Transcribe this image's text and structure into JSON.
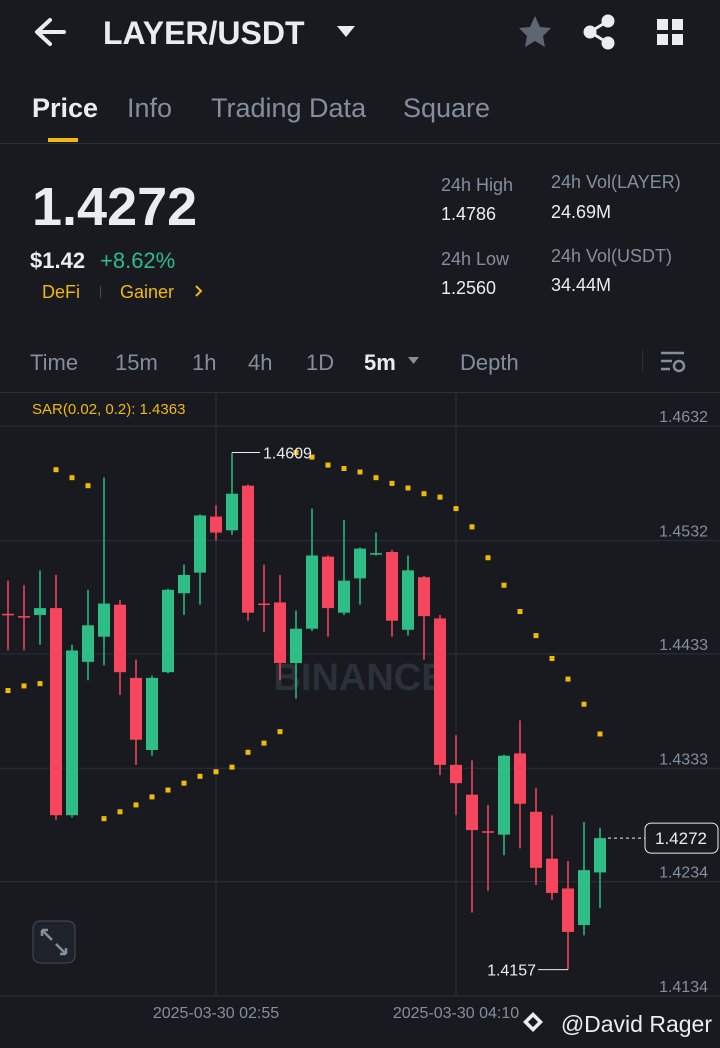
{
  "header": {
    "title": "LAYER/USDT"
  },
  "tabs": [
    "Price",
    "Info",
    "Trading Data",
    "Square"
  ],
  "ticker": {
    "last": "1.4272",
    "usd": "$1.42",
    "change": "+8.62%",
    "tags": [
      "DeFi",
      "Gainer"
    ],
    "stats": [
      {
        "label": "24h High",
        "value": "1.4786"
      },
      {
        "label": "24h Low",
        "value": "1.2560"
      },
      {
        "label": "24h Vol(LAYER)",
        "value": "24.69M"
      },
      {
        "label": "24h Vol(USDT)",
        "value": "34.44M"
      }
    ]
  },
  "intervals": [
    "Time",
    "15m",
    "1h",
    "4h",
    "1D",
    "5m",
    "Depth"
  ],
  "chart_data": {
    "type": "candlestick",
    "indicator": "SAR(0.02, 0.2): 1.4363",
    "watermark": "BINANCE",
    "up_color": "#2ebd85",
    "down_color": "#f6465d",
    "sar_color": "#f0b90b",
    "ylim": [
      1.4134,
      1.4661
    ],
    "yticks": [
      1.4632,
      1.4532,
      1.4433,
      1.4333,
      1.4234,
      1.4134
    ],
    "max_label": "1.4609",
    "min_label": "1.4157",
    "last_label": "1.4272",
    "categories": [
      null,
      null,
      null,
      null,
      null,
      null,
      null,
      null,
      null,
      null,
      null,
      null,
      null,
      "2025-03-30 02:55",
      null,
      null,
      null,
      null,
      null,
      null,
      null,
      null,
      null,
      null,
      null,
      null,
      null,
      null,
      "2025-03-30 04:10",
      null,
      null,
      null,
      null,
      null,
      null,
      null,
      null,
      null
    ],
    "candles": [
      {
        "open": 1.4468,
        "high": 1.4497,
        "low": 1.4436,
        "close": 1.4467
      },
      {
        "open": 1.4466,
        "high": 1.4493,
        "low": 1.4436,
        "close": 1.4465
      },
      {
        "open": 1.4467,
        "high": 1.4506,
        "low": 1.4441,
        "close": 1.4473
      },
      {
        "open": 1.4473,
        "high": 1.4502,
        "low": 1.4288,
        "close": 1.4292
      },
      {
        "open": 1.4292,
        "high": 1.4441,
        "low": 1.429,
        "close": 1.4436
      },
      {
        "open": 1.4426,
        "high": 1.4489,
        "low": 1.441,
        "close": 1.4458
      },
      {
        "open": 1.4448,
        "high": 1.4587,
        "low": 1.4423,
        "close": 1.4477
      },
      {
        "open": 1.4476,
        "high": 1.448,
        "low": 1.4397,
        "close": 1.4417
      },
      {
        "open": 1.4412,
        "high": 1.4428,
        "low": 1.4336,
        "close": 1.4358
      },
      {
        "open": 1.4349,
        "high": 1.4414,
        "low": 1.4344,
        "close": 1.4412
      },
      {
        "open": 1.4417,
        "high": 1.449,
        "low": 1.4416,
        "close": 1.4489
      },
      {
        "open": 1.4486,
        "high": 1.4511,
        "low": 1.4467,
        "close": 1.4502
      },
      {
        "open": 1.4504,
        "high": 1.4555,
        "low": 1.4476,
        "close": 1.4554
      },
      {
        "open": 1.4553,
        "high": 1.4563,
        "low": 1.4532,
        "close": 1.4539
      },
      {
        "open": 1.4541,
        "high": 1.4609,
        "low": 1.4537,
        "close": 1.4573
      },
      {
        "open": 1.458,
        "high": 1.4581,
        "low": 1.4462,
        "close": 1.4469
      },
      {
        "open": 1.4477,
        "high": 1.4511,
        "low": 1.4452,
        "close": 1.4476
      },
      {
        "open": 1.4478,
        "high": 1.4502,
        "low": 1.441,
        "close": 1.4425
      },
      {
        "open": 1.4425,
        "high": 1.4471,
        "low": 1.4394,
        "close": 1.4455
      },
      {
        "open": 1.4455,
        "high": 1.456,
        "low": 1.4453,
        "close": 1.4519
      },
      {
        "open": 1.4518,
        "high": 1.4519,
        "low": 1.4448,
        "close": 1.4473
      },
      {
        "open": 1.4469,
        "high": 1.455,
        "low": 1.4467,
        "close": 1.4497
      },
      {
        "open": 1.4499,
        "high": 1.4526,
        "low": 1.4476,
        "close": 1.4525
      },
      {
        "open": 1.452,
        "high": 1.4539,
        "low": 1.4519,
        "close": 1.4521
      },
      {
        "open": 1.4522,
        "high": 1.4524,
        "low": 1.4448,
        "close": 1.4462
      },
      {
        "open": 1.4454,
        "high": 1.4519,
        "low": 1.4449,
        "close": 1.4506
      },
      {
        "open": 1.45,
        "high": 1.4501,
        "low": 1.4428,
        "close": 1.4466
      },
      {
        "open": 1.4464,
        "high": 1.4467,
        "low": 1.4327,
        "close": 1.4336
      },
      {
        "open": 1.4336,
        "high": 1.4362,
        "low": 1.4292,
        "close": 1.432
      },
      {
        "open": 1.431,
        "high": 1.434,
        "low": 1.4207,
        "close": 1.4279
      },
      {
        "open": 1.4278,
        "high": 1.4301,
        "low": 1.4226,
        "close": 1.4277
      },
      {
        "open": 1.4275,
        "high": 1.4345,
        "low": 1.4257,
        "close": 1.4344
      },
      {
        "open": 1.4346,
        "high": 1.4375,
        "low": 1.4263,
        "close": 1.4302
      },
      {
        "open": 1.4295,
        "high": 1.4316,
        "low": 1.4231,
        "close": 1.4246
      },
      {
        "open": 1.4254,
        "high": 1.4292,
        "low": 1.4218,
        "close": 1.4224
      },
      {
        "open": 1.4228,
        "high": 1.4252,
        "low": 1.4157,
        "close": 1.419
      },
      {
        "open": 1.4196,
        "high": 1.4286,
        "low": 1.4187,
        "close": 1.4244
      },
      {
        "open": 1.4242,
        "high": 1.4281,
        "low": 1.4211,
        "close": 1.4272
      }
    ],
    "sar": [
      1.4401,
      1.4405,
      1.4407,
      1.4594,
      1.4587,
      1.458,
      1.4289,
      1.4295,
      1.4301,
      1.4308,
      1.4314,
      1.432,
      1.4326,
      1.433,
      1.4334,
      1.4347,
      1.4355,
      1.4365,
      1.4609,
      1.4605,
      1.4598,
      1.4595,
      1.4592,
      1.4587,
      1.4582,
      1.4578,
      1.4573,
      1.457,
      1.456,
      1.4544,
      1.4517,
      1.4493,
      1.447,
      1.4449,
      1.4429,
      1.4411,
      1.4389,
      1.4363
    ]
  },
  "footer": {
    "credit": "@David Rager"
  }
}
